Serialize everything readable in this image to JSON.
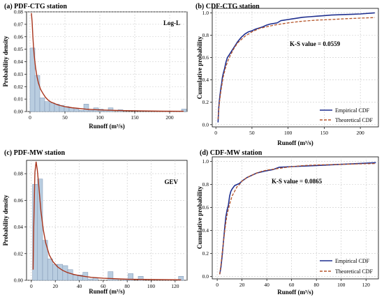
{
  "chart_data": [
    {
      "type": "bar",
      "title": "(a) PDF-CTG station",
      "annotation": "Log-L",
      "xlabel": "Runoff (m³/s)",
      "ylabel": "Probability density",
      "xlim": [
        -5,
        225
      ],
      "ylim": [
        0,
        0.08
      ],
      "xticks": [
        0,
        50,
        100,
        150,
        200
      ],
      "yticks": [
        0,
        0.01,
        0.02,
        0.03,
        0.04,
        0.05,
        0.06,
        0.07,
        0.08
      ],
      "grid": true,
      "histogram": {
        "bin_width": 7,
        "bin_starts": [
          0,
          7,
          14,
          21,
          28,
          35,
          42,
          49,
          56,
          63,
          70,
          77,
          84,
          91,
          98,
          105,
          112,
          119,
          126,
          133,
          140,
          147,
          154,
          161,
          168,
          175,
          182,
          189,
          196,
          203,
          210,
          217
        ],
        "values": [
          0.051,
          0.029,
          0.011,
          0.008,
          0.007,
          0.006,
          0.005,
          0.004,
          0.003,
          0.002,
          0.001,
          0.006,
          0.001,
          0.003,
          0.002,
          0.001,
          0.003,
          0,
          0.0015,
          0,
          0,
          0,
          0,
          0,
          0,
          0,
          0,
          0,
          0,
          0,
          0,
          0.002
        ]
      },
      "curve": {
        "name": "Log-L",
        "x": [
          2,
          3,
          4,
          5,
          6,
          8,
          10,
          12,
          15,
          18,
          22,
          26,
          30,
          40,
          50,
          60,
          80,
          100,
          130,
          160,
          190,
          220
        ],
        "y": [
          0.079,
          0.072,
          0.061,
          0.052,
          0.045,
          0.035,
          0.028,
          0.023,
          0.018,
          0.015,
          0.0115,
          0.0092,
          0.0076,
          0.0053,
          0.0039,
          0.0031,
          0.0019,
          0.0013,
          0.0008,
          0.0005,
          0.0003,
          0.0002
        ]
      }
    },
    {
      "type": "line",
      "title": "(b) CDF-CTG station",
      "annotation": "K-S value = 0.0559",
      "xlabel": "Runoff (m³/s)",
      "ylabel": "Cumulative probability",
      "xlim": [
        -5,
        225
      ],
      "ylim": [
        -0.02,
        1.04
      ],
      "xticks": [
        0,
        50,
        100,
        150,
        200
      ],
      "yticks": [
        0.0,
        0.2,
        0.4,
        0.6,
        0.8,
        1.0
      ],
      "grid": true,
      "legend_position": "lower-right",
      "series": [
        {
          "name": "Empirical CDF",
          "color": "#1f2f8f",
          "dash": false,
          "x": [
            3,
            4,
            5,
            6,
            7,
            8,
            9,
            10,
            12,
            14,
            16,
            18,
            20,
            23,
            26,
            30,
            35,
            40,
            45,
            50,
            55,
            60,
            65,
            70,
            75,
            80,
            85,
            90,
            95,
            100,
            105,
            110,
            120,
            130,
            140,
            150,
            160,
            180,
            200,
            220
          ],
          "y": [
            0.02,
            0.15,
            0.22,
            0.28,
            0.33,
            0.37,
            0.42,
            0.45,
            0.5,
            0.56,
            0.6,
            0.62,
            0.64,
            0.67,
            0.7,
            0.74,
            0.78,
            0.81,
            0.83,
            0.84,
            0.855,
            0.865,
            0.875,
            0.89,
            0.9,
            0.905,
            0.91,
            0.93,
            0.935,
            0.94,
            0.945,
            0.95,
            0.96,
            0.965,
            0.97,
            0.975,
            0.98,
            0.985,
            0.99,
            1.0
          ]
        },
        {
          "name": "Theoretical CDF",
          "color": "#b5552a",
          "dash": true,
          "x": [
            3,
            5,
            7,
            10,
            13,
            16,
            20,
            25,
            30,
            35,
            40,
            50,
            60,
            70,
            80,
            100,
            120,
            140,
            160,
            180,
            200,
            220
          ],
          "y": [
            0.05,
            0.2,
            0.3,
            0.42,
            0.5,
            0.56,
            0.62,
            0.68,
            0.73,
            0.76,
            0.79,
            0.83,
            0.86,
            0.875,
            0.89,
            0.91,
            0.925,
            0.935,
            0.94,
            0.948,
            0.953,
            0.958
          ]
        }
      ]
    },
    {
      "type": "bar",
      "title": "(c) PDF-MW station",
      "annotation": "GEV",
      "xlabel": "Runoff (m³/s)",
      "ylabel": "Probability density",
      "xlim": [
        -4,
        130
      ],
      "ylim": [
        0,
        0.09
      ],
      "xticks": [
        0,
        20,
        40,
        60,
        80,
        100,
        120
      ],
      "yticks": [
        0,
        0.02,
        0.04,
        0.06,
        0.08
      ],
      "grid": true,
      "histogram": {
        "bin_width": 4.2,
        "bin_starts": [
          1,
          5.2,
          9.4,
          13.6,
          17.8,
          22,
          26.2,
          30.4,
          34.6,
          38.8,
          43,
          47.2,
          51.4,
          55.6,
          59.8,
          64,
          68.2,
          72.4,
          76.6,
          80.8,
          85,
          89.2,
          93.4,
          97.6,
          101.8,
          106,
          110.2,
          114.4,
          118.6,
          122.8
        ],
        "values": [
          0.072,
          0.076,
          0.03,
          0.016,
          0.012,
          0.012,
          0.011,
          0.008,
          0.004,
          0.004,
          0.006,
          0.001,
          0.002,
          0,
          0,
          0.0065,
          0.001,
          0,
          0.001,
          0.005,
          0,
          0.003,
          0,
          0,
          0,
          0,
          0,
          0,
          0,
          0.003
        ]
      },
      "curve": {
        "name": "GEV",
        "x": [
          1.5,
          2,
          3,
          4,
          5,
          6,
          8,
          10,
          12,
          15,
          18,
          22,
          26,
          30,
          35,
          40,
          50,
          60,
          80,
          100,
          125
        ],
        "y": [
          0.008,
          0.04,
          0.081,
          0.089,
          0.083,
          0.073,
          0.052,
          0.038,
          0.028,
          0.019,
          0.014,
          0.01,
          0.0075,
          0.0058,
          0.0045,
          0.0035,
          0.0022,
          0.0015,
          0.0008,
          0.0005,
          0.0003
        ]
      }
    },
    {
      "type": "line",
      "title": "(d) CDF-MW station",
      "annotation": "K-S value = 0.0865",
      "xlabel": "Runoff (m³/s)",
      "ylabel": "Cumulative probability",
      "xlim": [
        -4,
        130
      ],
      "ylim": [
        -0.02,
        1.04
      ],
      "xticks": [
        0,
        20,
        40,
        60,
        80,
        100,
        120
      ],
      "yticks": [
        0.0,
        0.2,
        0.4,
        0.6,
        0.8,
        1.0
      ],
      "grid": true,
      "legend_position": "lower-right",
      "series": [
        {
          "name": "Empirical CDF",
          "color": "#1f2f8f",
          "dash": false,
          "x": [
            2,
            3,
            4,
            5,
            6,
            7,
            8,
            9,
            10,
            11,
            12,
            14,
            16,
            18,
            20,
            24,
            28,
            32,
            36,
            40,
            45,
            50,
            60,
            70,
            80,
            90,
            100,
            110,
            120,
            128
          ],
          "y": [
            0.02,
            0.08,
            0.18,
            0.3,
            0.42,
            0.52,
            0.58,
            0.62,
            0.7,
            0.74,
            0.76,
            0.79,
            0.8,
            0.81,
            0.83,
            0.86,
            0.88,
            0.9,
            0.91,
            0.92,
            0.93,
            0.95,
            0.955,
            0.96,
            0.965,
            0.97,
            0.975,
            0.98,
            0.985,
            0.99
          ]
        },
        {
          "name": "Theoretical CDF",
          "color": "#b5552a",
          "dash": true,
          "x": [
            2,
            3,
            4,
            5,
            6,
            7,
            8,
            10,
            12,
            14,
            16,
            18,
            20,
            24,
            28,
            32,
            36,
            40,
            50,
            60,
            70,
            80,
            100,
            120,
            128
          ],
          "y": [
            0.02,
            0.1,
            0.2,
            0.3,
            0.39,
            0.47,
            0.54,
            0.63,
            0.7,
            0.74,
            0.78,
            0.8,
            0.83,
            0.86,
            0.88,
            0.9,
            0.915,
            0.925,
            0.94,
            0.955,
            0.965,
            0.97,
            0.975,
            0.98,
            0.982
          ]
        }
      ]
    }
  ],
  "colors": {
    "bar_fill": "#b9cde0",
    "bar_edge": "#7f96b4",
    "pdf_curve": "#a8341c",
    "grid": "#c8c8c8"
  }
}
